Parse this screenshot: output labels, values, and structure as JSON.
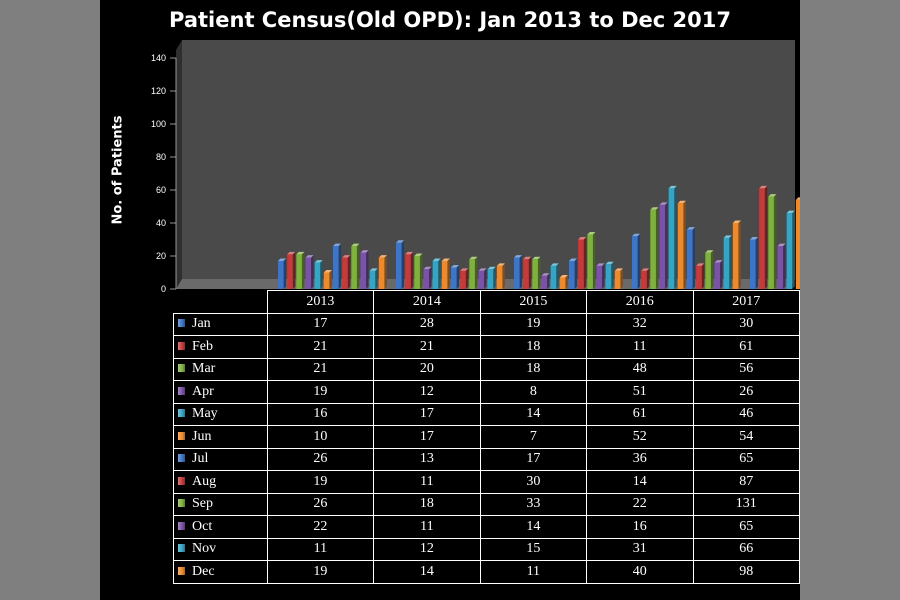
{
  "chart_data": {
    "type": "bar",
    "title": "Patient Census(Old OPD): Jan 2013 to Dec 2017",
    "xlabel": "",
    "ylabel": "No. of Patients",
    "ylim": [
      0,
      140
    ],
    "yticks": [
      0,
      20,
      40,
      60,
      80,
      100,
      120,
      140
    ],
    "grid": false,
    "legend": "table",
    "categories": [
      "2013",
      "2014",
      "2015",
      "2016",
      "2017"
    ],
    "series": [
      {
        "name": "Jan",
        "color": "#3d76c9",
        "values": [
          17,
          28,
          19,
          32,
          30
        ]
      },
      {
        "name": "Feb",
        "color": "#c73a3a",
        "values": [
          21,
          21,
          18,
          11,
          61
        ]
      },
      {
        "name": "Mar",
        "color": "#7fb23c",
        "values": [
          21,
          20,
          18,
          48,
          56
        ]
      },
      {
        "name": "Apr",
        "color": "#7a52a8",
        "values": [
          19,
          12,
          8,
          51,
          26
        ]
      },
      {
        "name": "May",
        "color": "#34a5c4",
        "values": [
          16,
          17,
          14,
          61,
          46
        ]
      },
      {
        "name": "Jun",
        "color": "#ef8a2c",
        "values": [
          10,
          17,
          7,
          52,
          54
        ]
      },
      {
        "name": "Jul",
        "color": "#3d76c9",
        "values": [
          26,
          13,
          17,
          36,
          65
        ]
      },
      {
        "name": "Aug",
        "color": "#c73a3a",
        "values": [
          19,
          11,
          30,
          14,
          87
        ]
      },
      {
        "name": "Sep",
        "color": "#7fb23c",
        "values": [
          26,
          18,
          33,
          22,
          131
        ]
      },
      {
        "name": "Oct",
        "color": "#7a52a8",
        "values": [
          22,
          11,
          14,
          16,
          65
        ]
      },
      {
        "name": "Nov",
        "color": "#34a5c4",
        "values": [
          11,
          12,
          15,
          31,
          66
        ]
      },
      {
        "name": "Dec",
        "color": "#ef8a2c",
        "values": [
          19,
          14,
          11,
          40,
          98
        ]
      }
    ]
  }
}
